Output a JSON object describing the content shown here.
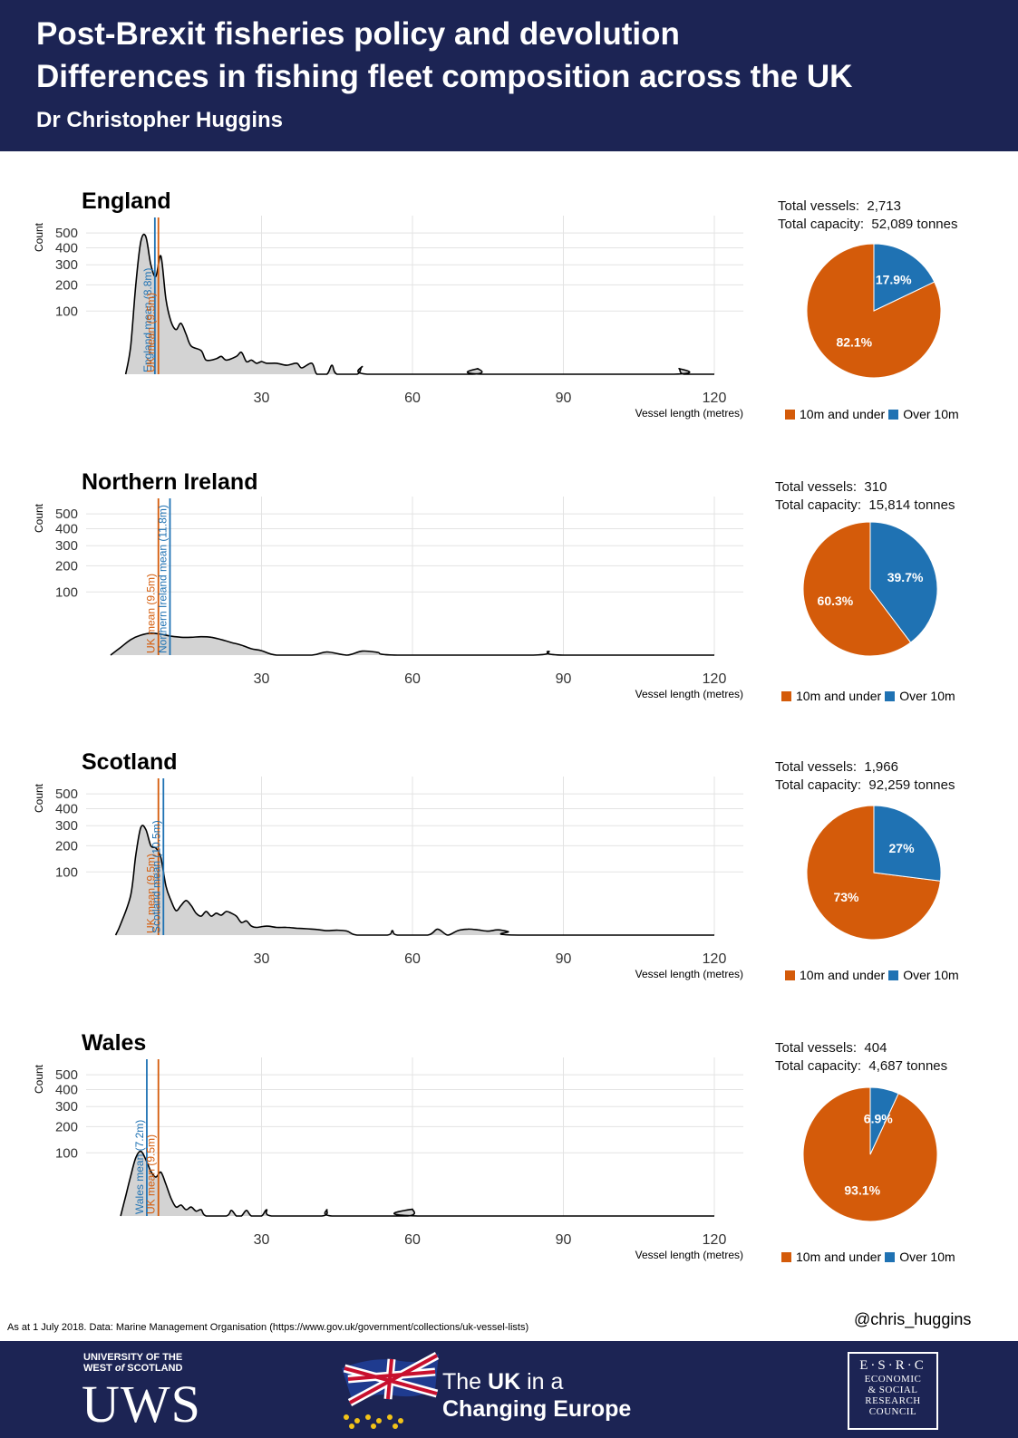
{
  "header": {
    "title_line1": "Post-Brexit fisheries policy and devolution",
    "title_line2": "Differences in fishing fleet composition across the UK",
    "author": "Dr Christopher Huggins"
  },
  "colors": {
    "header_bg": "#1c2454",
    "ten_and_under": "#d45b0a",
    "over_ten": "#1f72b3",
    "density_fill": "#d3d3d3"
  },
  "legend": {
    "under": "10m and under",
    "over": "Over 10m"
  },
  "chart_data": [
    {
      "type": "area",
      "title": "England",
      "ylabel": "Count",
      "xlabel": "Vessel length (metres)",
      "x_ticks": [
        30,
        60,
        90,
        120
      ],
      "xlim": [
        0,
        120
      ],
      "y_ticks": [
        100,
        200,
        300,
        400,
        500
      ],
      "y_scale": "sqrt",
      "grid": true,
      "density": [
        [
          3,
          0
        ],
        [
          4,
          20
        ],
        [
          5,
          200
        ],
        [
          6,
          440
        ],
        [
          7,
          475
        ],
        [
          8,
          300
        ],
        [
          9,
          240
        ],
        [
          10,
          350
        ],
        [
          11,
          140
        ],
        [
          12,
          70
        ],
        [
          13,
          50
        ],
        [
          14,
          65
        ],
        [
          15,
          40
        ],
        [
          16,
          20
        ],
        [
          18,
          14
        ],
        [
          19,
          5
        ],
        [
          21,
          6
        ],
        [
          22,
          8
        ],
        [
          23,
          5
        ],
        [
          25,
          8
        ],
        [
          26,
          12
        ],
        [
          27,
          4
        ],
        [
          28,
          5
        ],
        [
          29,
          3
        ],
        [
          30,
          4
        ],
        [
          31,
          3
        ],
        [
          33,
          3
        ],
        [
          35,
          2
        ],
        [
          37,
          3
        ],
        [
          38,
          1
        ],
        [
          40,
          3
        ],
        [
          41,
          0
        ],
        [
          43,
          0
        ],
        [
          44,
          2
        ],
        [
          45,
          0
        ],
        [
          49,
          0
        ],
        [
          50,
          1.5
        ],
        [
          51,
          0
        ],
        [
          72,
          0
        ],
        [
          73,
          0.8
        ],
        [
          74,
          0
        ],
        [
          112,
          0
        ],
        [
          113,
          0.8
        ],
        [
          114,
          0
        ],
        [
          120,
          0
        ]
      ],
      "means": [
        {
          "label": "England mean (8.8m)",
          "value": 8.8,
          "color": "#1f72b3"
        },
        {
          "label": "UK mean (9.5m)",
          "value": 9.5,
          "color": "#d45b0a"
        }
      ],
      "pie": {
        "total_vessels_label": "Total vessels:",
        "total_vessels": "2,713",
        "total_capacity_label": "Total capacity:",
        "total_capacity": "52,089 tonnes",
        "slices": [
          {
            "name": "10m and under",
            "value": 82.1,
            "label": "82.1%"
          },
          {
            "name": "Over 10m",
            "value": 17.9,
            "label": "17.9%"
          }
        ]
      }
    },
    {
      "type": "area",
      "title": "Northern Ireland",
      "ylabel": "Count",
      "xlabel": "Vessel length (metres)",
      "x_ticks": [
        30,
        60,
        90,
        120
      ],
      "xlim": [
        0,
        120
      ],
      "y_ticks": [
        100,
        200,
        300,
        400,
        500
      ],
      "y_scale": "sqrt",
      "grid": true,
      "density": [
        [
          0,
          0
        ],
        [
          2,
          1.5
        ],
        [
          4,
          6
        ],
        [
          6,
          10
        ],
        [
          8,
          12
        ],
        [
          10,
          11
        ],
        [
          12,
          9
        ],
        [
          14,
          8
        ],
        [
          16,
          8
        ],
        [
          18,
          8.5
        ],
        [
          20,
          8
        ],
        [
          22,
          6
        ],
        [
          24,
          4
        ],
        [
          26,
          2.5
        ],
        [
          28,
          1
        ],
        [
          30,
          0.5
        ],
        [
          33,
          0
        ],
        [
          40,
          0
        ],
        [
          43,
          0.25
        ],
        [
          47,
          0
        ],
        [
          50,
          0.4
        ],
        [
          53,
          0.2
        ],
        [
          57,
          0
        ],
        [
          84,
          0
        ],
        [
          87,
          0.35
        ],
        [
          90,
          0
        ],
        [
          120,
          0
        ]
      ],
      "means": [
        {
          "label": "UK mean (9.5m)",
          "value": 9.5,
          "color": "#d45b0a"
        },
        {
          "label": "Northern Ireland mean (11.8m)",
          "value": 11.8,
          "color": "#1f72b3"
        }
      ],
      "pie": {
        "total_vessels_label": "Total vessels:",
        "total_vessels": "310",
        "total_capacity_label": "Total capacity:",
        "total_capacity": "15,814 tonnes",
        "slices": [
          {
            "name": "10m and under",
            "value": 60.3,
            "label": "60.3%"
          },
          {
            "name": "Over 10m",
            "value": 39.7,
            "label": "39.7%"
          }
        ]
      }
    },
    {
      "type": "area",
      "title": "Scotland",
      "ylabel": "Count",
      "xlabel": "Vessel length (metres)",
      "x_ticks": [
        30,
        60,
        90,
        120
      ],
      "xlim": [
        0,
        120
      ],
      "y_ticks": [
        100,
        200,
        300,
        400,
        500
      ],
      "y_scale": "sqrt",
      "grid": true,
      "density": [
        [
          1,
          0
        ],
        [
          2,
          3
        ],
        [
          4,
          40
        ],
        [
          5,
          160
        ],
        [
          6,
          290
        ],
        [
          7,
          280
        ],
        [
          8,
          200
        ],
        [
          9,
          190
        ],
        [
          10,
          150
        ],
        [
          11,
          60
        ],
        [
          12,
          30
        ],
        [
          13,
          15
        ],
        [
          14,
          22
        ],
        [
          15,
          30
        ],
        [
          16,
          22
        ],
        [
          17,
          12
        ],
        [
          18,
          9
        ],
        [
          19,
          14
        ],
        [
          20,
          9
        ],
        [
          21,
          12
        ],
        [
          22,
          10
        ],
        [
          23,
          14
        ],
        [
          24,
          12
        ],
        [
          25,
          9
        ],
        [
          26,
          4
        ],
        [
          27,
          5
        ],
        [
          28,
          2
        ],
        [
          29,
          1.5
        ],
        [
          31,
          2
        ],
        [
          33,
          1.5
        ],
        [
          35,
          1.5
        ],
        [
          37,
          1.2
        ],
        [
          39,
          1
        ],
        [
          41,
          0.8
        ],
        [
          43,
          0.5
        ],
        [
          45,
          0.6
        ],
        [
          47,
          0.4
        ],
        [
          49,
          0
        ],
        [
          55,
          0
        ],
        [
          56,
          0.5
        ],
        [
          57,
          0
        ],
        [
          63,
          0
        ],
        [
          65,
          0.9
        ],
        [
          67,
          0
        ],
        [
          69,
          0.5
        ],
        [
          71,
          0.9
        ],
        [
          73,
          0.7
        ],
        [
          75,
          0.4
        ],
        [
          77,
          0.7
        ],
        [
          79,
          0.3
        ],
        [
          81,
          0
        ],
        [
          120,
          0
        ]
      ],
      "means": [
        {
          "label": "UK mean (9.5m)",
          "value": 9.5,
          "color": "#d45b0a"
        },
        {
          "label": "Scotland mean (10.5m)",
          "value": 10.5,
          "color": "#1f72b3"
        }
      ],
      "pie": {
        "total_vessels_label": "Total vessels:",
        "total_vessels": "1,966",
        "total_capacity_label": "Total capacity:",
        "total_capacity": "92,259 tonnes",
        "slices": [
          {
            "name": "10m and under",
            "value": 73,
            "label": "73%"
          },
          {
            "name": "Over 10m",
            "value": 27,
            "label": "27%"
          }
        ]
      }
    },
    {
      "type": "area",
      "title": "Wales",
      "ylabel": "Count",
      "xlabel": "Vessel length (metres)",
      "x_ticks": [
        30,
        60,
        90,
        120
      ],
      "xlim": [
        0,
        120
      ],
      "y_ticks": [
        100,
        200,
        300,
        400,
        500
      ],
      "y_scale": "sqrt",
      "grid": true,
      "density": [
        [
          2,
          0
        ],
        [
          3,
          10
        ],
        [
          4,
          40
        ],
        [
          5,
          85
        ],
        [
          6,
          105
        ],
        [
          7,
          80
        ],
        [
          8,
          50
        ],
        [
          9,
          38
        ],
        [
          10,
          48
        ],
        [
          11,
          25
        ],
        [
          12,
          8
        ],
        [
          13,
          2
        ],
        [
          14,
          3
        ],
        [
          15,
          1
        ],
        [
          16,
          2
        ],
        [
          17,
          0.6
        ],
        [
          18,
          1
        ],
        [
          19,
          0
        ],
        [
          23,
          0
        ],
        [
          24,
          0.8
        ],
        [
          25,
          0
        ],
        [
          26,
          0
        ],
        [
          27,
          0.8
        ],
        [
          28,
          0
        ],
        [
          30,
          0
        ],
        [
          31,
          1
        ],
        [
          32,
          0
        ],
        [
          42,
          0
        ],
        [
          43,
          1
        ],
        [
          44,
          0
        ],
        [
          59,
          0
        ],
        [
          60,
          1.2
        ],
        [
          61,
          0
        ],
        [
          120,
          0
        ]
      ],
      "means": [
        {
          "label": "Wales mean (7.2m)",
          "value": 7.2,
          "color": "#1f72b3"
        },
        {
          "label": "UK mean (9.5m)",
          "value": 9.5,
          "color": "#d45b0a"
        }
      ],
      "pie": {
        "total_vessels_label": "Total vessels:",
        "total_vessels": "404",
        "total_capacity_label": "Total capacity:",
        "total_capacity": "4,687 tonnes",
        "slices": [
          {
            "name": "10m and under",
            "value": 93.1,
            "label": "93.1%"
          },
          {
            "name": "Over 10m",
            "value": 6.9,
            "label": "6.9%"
          }
        ]
      }
    }
  ],
  "footer": {
    "source_note": "As at 1 July 2018. Data: Marine Management Organisation (https://www.gov.uk/government/collections/uk-vessel-lists)",
    "twitter_handle": "@chris_huggins",
    "uws_line1": "UNIVERSITY OF THE",
    "uws_line2_a": "WEST",
    "uws_line2_b": "of",
    "uws_line2_c": "SCOTLAND",
    "uws_logo": "UWS",
    "ukice_line1_a": "The",
    "ukice_line1_b": "UK",
    "ukice_line1_c": "in a",
    "ukice_line2": "Changing Europe",
    "esrc_logo": "E·S·R·C",
    "esrc_line1": "ECONOMIC",
    "esrc_line2": "& SOCIAL",
    "esrc_line3": "RESEARCH",
    "esrc_line4": "COUNCIL"
  }
}
